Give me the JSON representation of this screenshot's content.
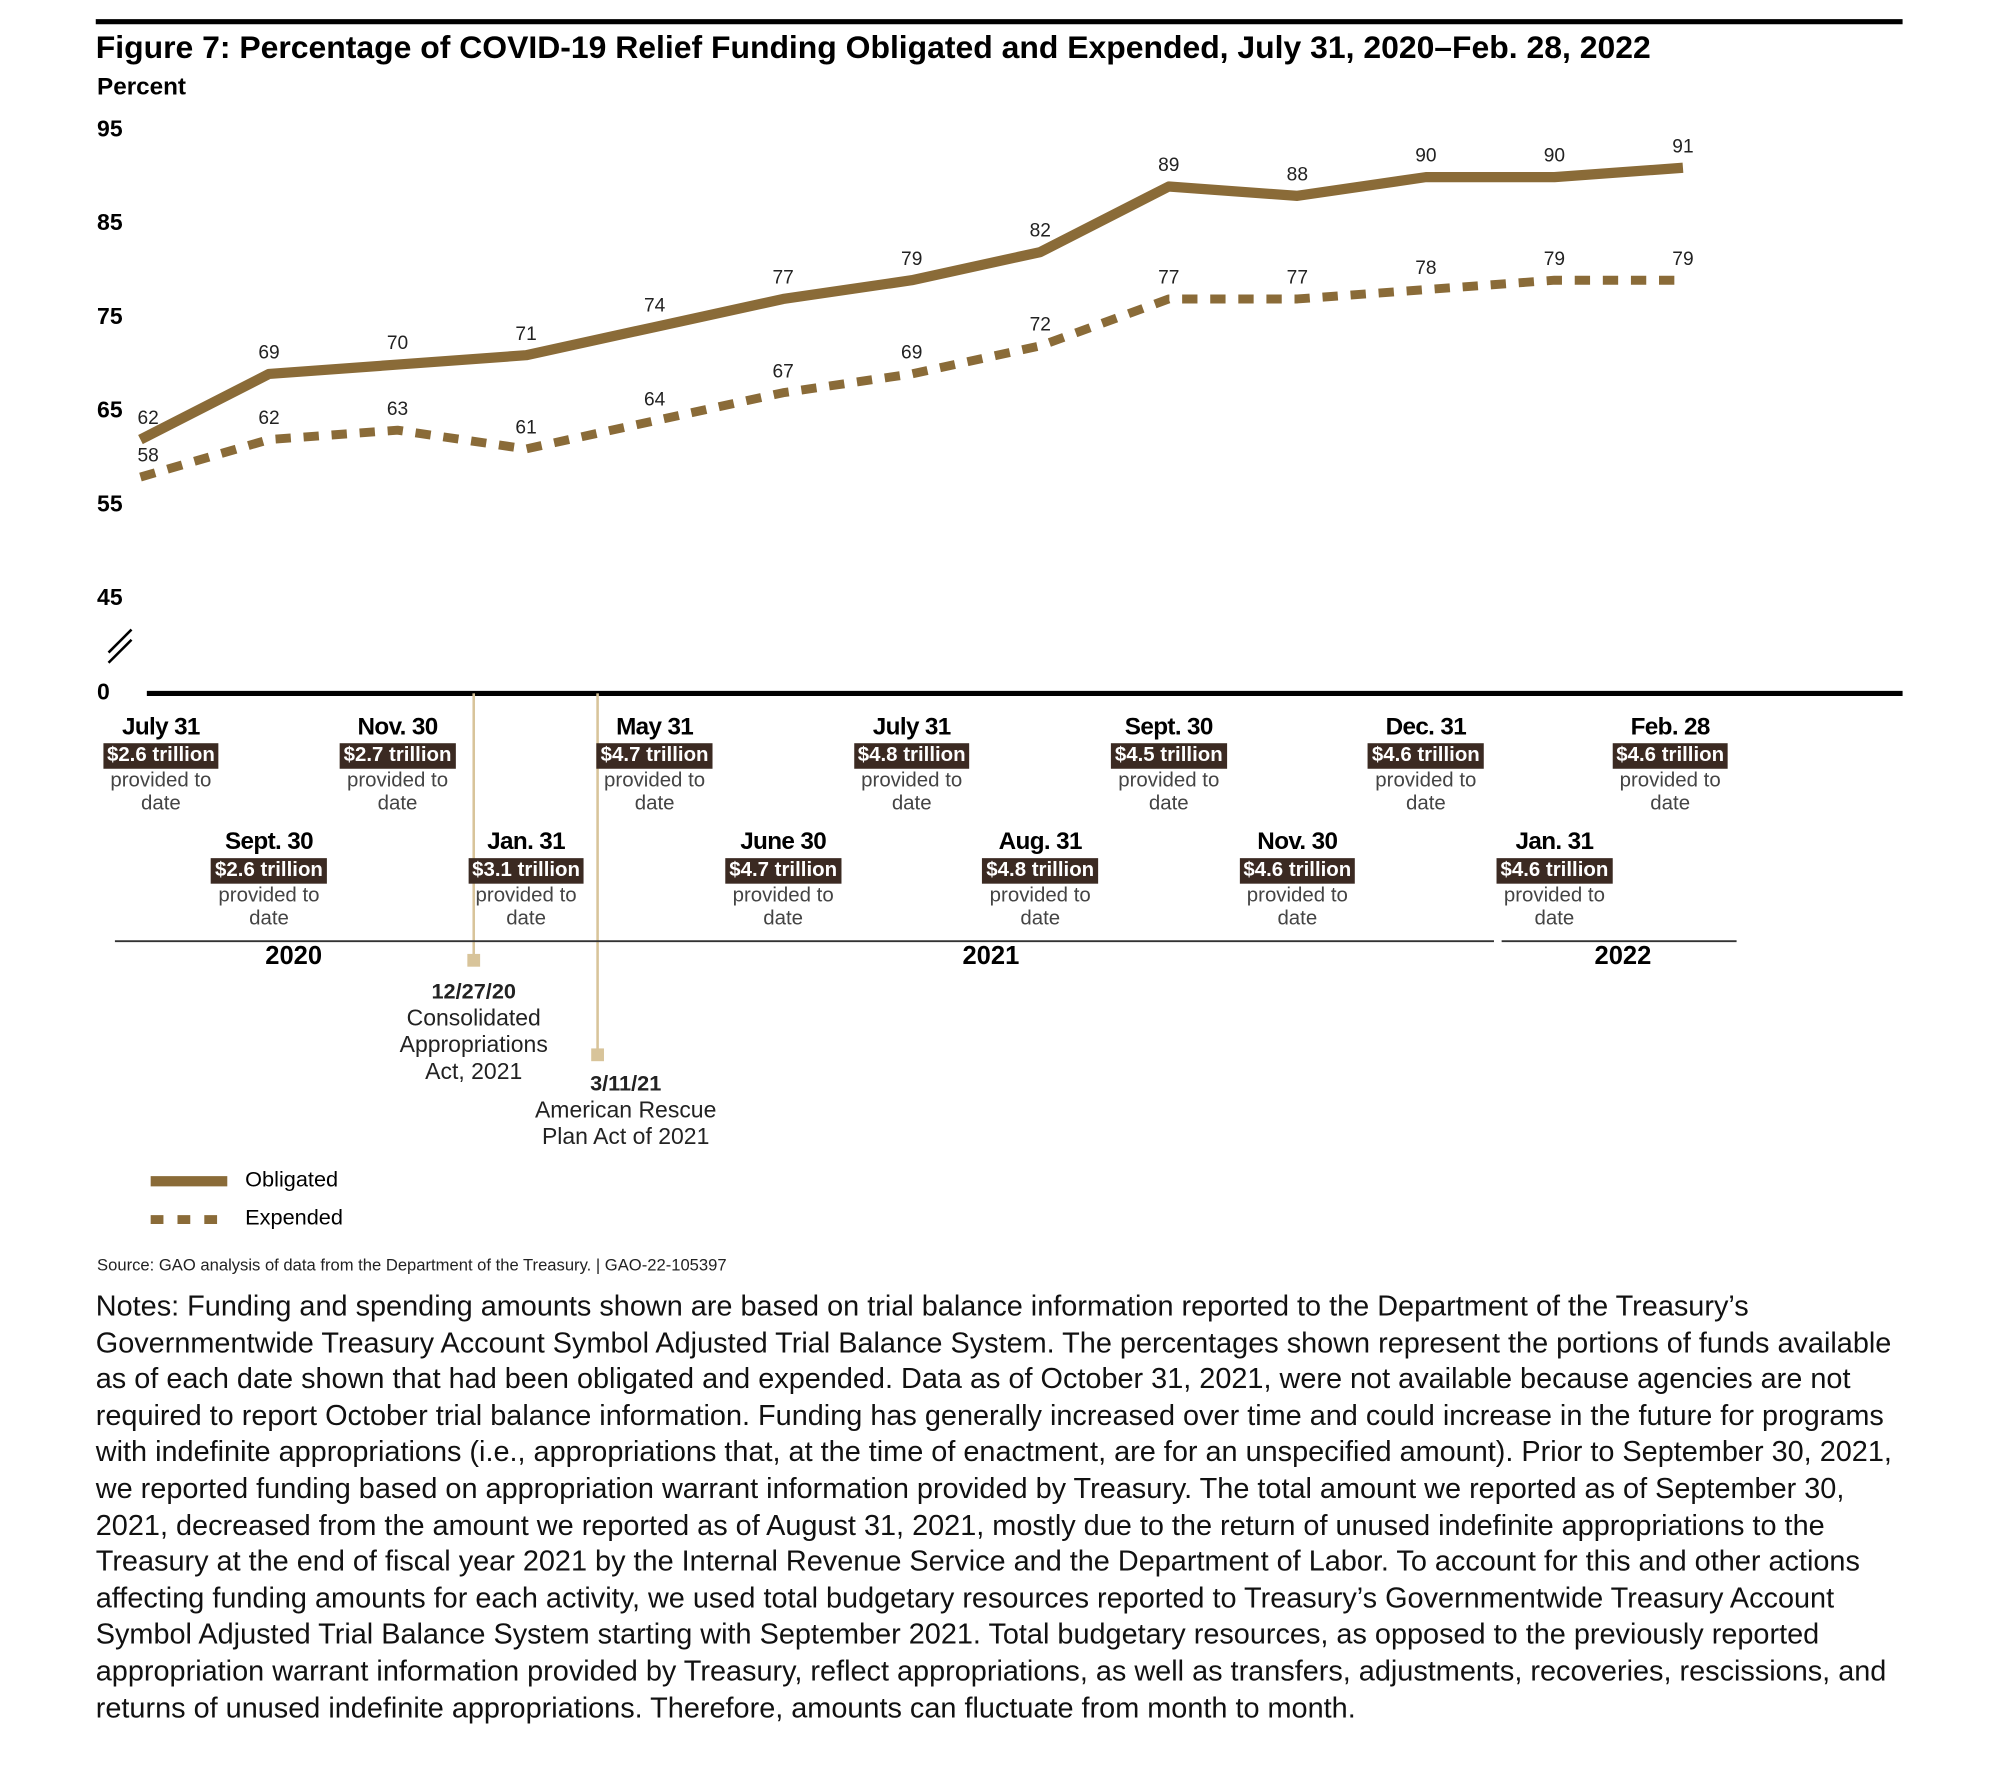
{
  "chart_data": {
    "type": "line",
    "title": "Figure 7: Percentage of COVID-19 Relief Funding Obligated and Expended, July 31, 2020–Feb. 28, 2022",
    "y_axis_label": "Percent",
    "categories": [
      "July 31",
      "Sept. 30",
      "Nov. 30",
      "Jan. 31",
      "May 31",
      "June 30",
      "July 31",
      "Aug. 31",
      "Sept. 30",
      "Nov. 30",
      "Dec. 31",
      "Jan. 31",
      "Feb. 28"
    ],
    "funding": [
      "$2.6 trillion",
      "$2.6 trillion",
      "$2.7 trillion",
      "$3.1 trillion",
      "$4.7 trillion",
      "$4.7 trillion",
      "$4.8 trillion",
      "$4.8 trillion",
      "$4.5 trillion",
      "$4.6 trillion",
      "$4.6 trillion",
      "$4.6 trillion",
      "$4.6 trillion"
    ],
    "funding_note": "provided to date",
    "years": [
      "2020",
      "2021",
      "2022"
    ],
    "series": [
      {
        "name": "Obligated",
        "color": "#8a6b38",
        "style": "solid",
        "values": [
          62,
          69,
          70,
          71,
          74,
          77,
          79,
          82,
          89,
          88,
          90,
          90,
          91
        ]
      },
      {
        "name": "Expended",
        "color": "#8a6b38",
        "style": "dashed",
        "values": [
          58,
          62,
          63,
          61,
          64,
          67,
          69,
          72,
          77,
          77,
          78,
          79,
          79
        ]
      }
    ],
    "ylim": [
      45,
      95
    ],
    "yticks": [
      0,
      45,
      55,
      65,
      75,
      85,
      95
    ],
    "axis_break": true,
    "grid": false,
    "events": [
      {
        "date": "12/27/20",
        "label": "Consolidated Appropriations Act, 2021"
      },
      {
        "date": "3/11/21",
        "label": "American Rescue Plan Act of 2021"
      }
    ],
    "source": "Source: GAO analysis of data from the Department of the Treasury. | GAO-22-105397",
    "notes": "Notes: Funding and spending amounts shown are based on trial balance information reported to the Department of the Treasury’s Governmentwide Treasury Account Symbol Adjusted Trial Balance System. The percentages shown represent the portions of funds available as of each date shown that had been obligated and expended. Data as of October 31, 2021, were not available because agencies are not required to report October trial balance information. Funding has generally increased over time and could increase in the future for programs with indefinite appropriations (i.e., appropriations that, at the time of enactment, are for an unspecified amount). Prior to September 30, 2021, we reported funding based on appropriation warrant information provided by Treasury. The total amount we reported as of September 30, 2021, decreased from the amount we reported as of August 31, 2021, mostly due to the return of unused indefinite appropriations to the Treasury at the end of fiscal year 2021 by the Internal Revenue Service and the Department of Labor. To account for this and other actions affecting funding amounts for each activity, we used total budgetary resources reported to Treasury’s Governmentwide Treasury Account Symbol Adjusted Trial Balance System starting with September 2021. Total budgetary resources, as opposed to the previously reported appropriation warrant information provided by Treasury, reflect appropriations, as well as transfers, adjustments, recoveries, rescissions, and returns of unused indefinite appropriations. Therefore, amounts can fluctuate from month to month."
  }
}
